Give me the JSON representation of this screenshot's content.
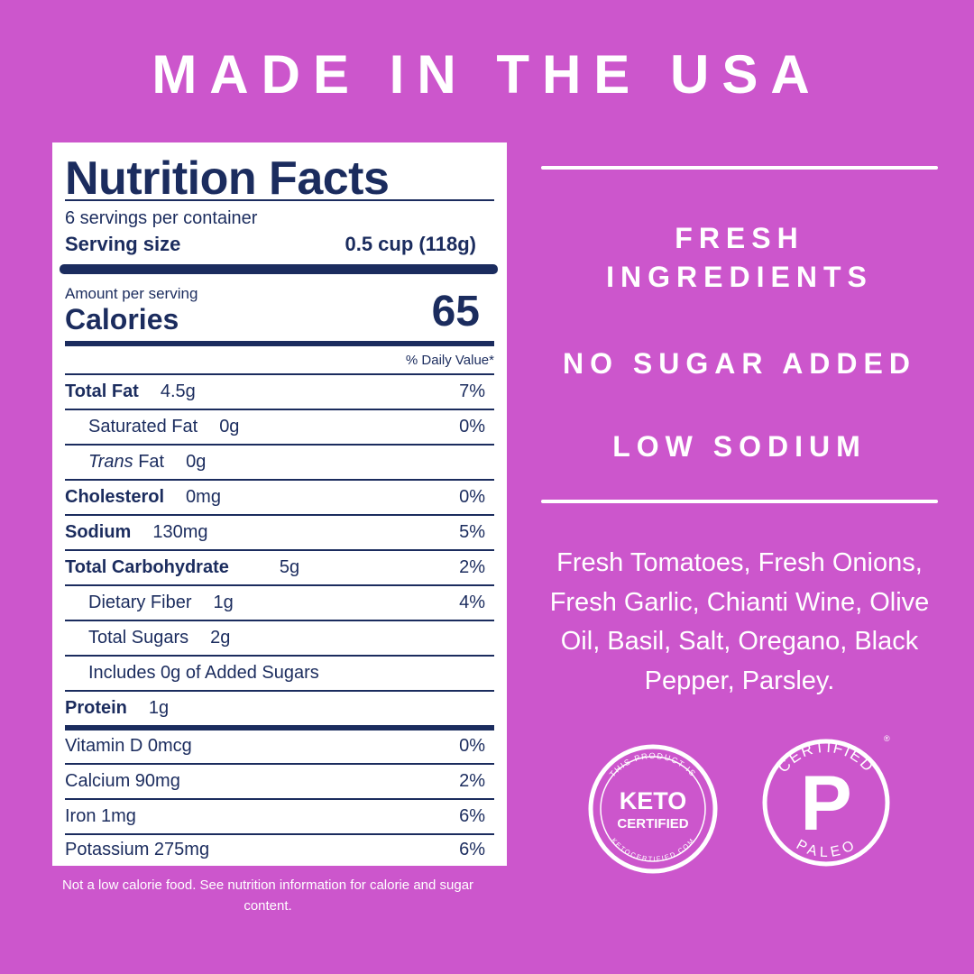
{
  "header": {
    "title": "MADE IN THE USA"
  },
  "nutrition": {
    "heading": "Nutrition Facts",
    "servings": "6 servings per container",
    "serving_size_label": "Serving size",
    "serving_size": "0.5 cup (118g)",
    "amount_label": "Amount per serving",
    "calories_label": "Calories",
    "calories": 65,
    "dv_header": "% Daily Value*",
    "rows": [
      {
        "label": "Total Fat",
        "amount": "4.5g",
        "dv": "7%"
      },
      {
        "label": "Saturated Fat",
        "amount": "0g",
        "dv": "0%"
      },
      {
        "label_italic": "Trans",
        "label": "Fat",
        "amount": "0g"
      },
      {
        "label": "Cholesterol",
        "amount": "0mg",
        "dv": "0%"
      },
      {
        "label": "Sodium",
        "amount": "130mg",
        "dv": "5%"
      },
      {
        "label": "Total Carbohydrate",
        "amount": "5g",
        "dv": "2%"
      },
      {
        "label": "Dietary Fiber",
        "amount": "1g",
        "dv": "4%"
      },
      {
        "label": "Total Sugars",
        "amount": "2g"
      },
      {
        "label": "Includes 0g of Added Sugars"
      },
      {
        "label": "Protein",
        "amount": "1g"
      }
    ],
    "vitamins": [
      {
        "label": "Vitamin D 0mcg",
        "dv": "0%"
      },
      {
        "label": "Calcium 90mg",
        "dv": "2%"
      },
      {
        "label": "Iron 1mg",
        "dv": "6%"
      },
      {
        "label": "Potassium 275mg",
        "dv": "6%"
      }
    ],
    "footnote": "Not a low calorie food. See nutrition information for calorie and sugar content."
  },
  "claims": [
    "FRESH INGREDIENTS",
    "NO SUGAR ADDED",
    "LOW SODIUM"
  ],
  "ingredients": "Fresh Tomatoes, Fresh Onions, Fresh Garlic, Chianti Wine, Olive Oil, Basil, Salt, Oregano, Black Pepper, Parsley.",
  "badges": {
    "keto": {
      "top": "THIS PRODUCT IS",
      "main": "KETO",
      "sub": "CERTIFIED",
      "bottom": "KETOCERTIFIED.COM"
    },
    "paleo": {
      "top": "CERTIFIED",
      "main": "P",
      "bottom": "PALEO",
      "mark": "®"
    }
  }
}
